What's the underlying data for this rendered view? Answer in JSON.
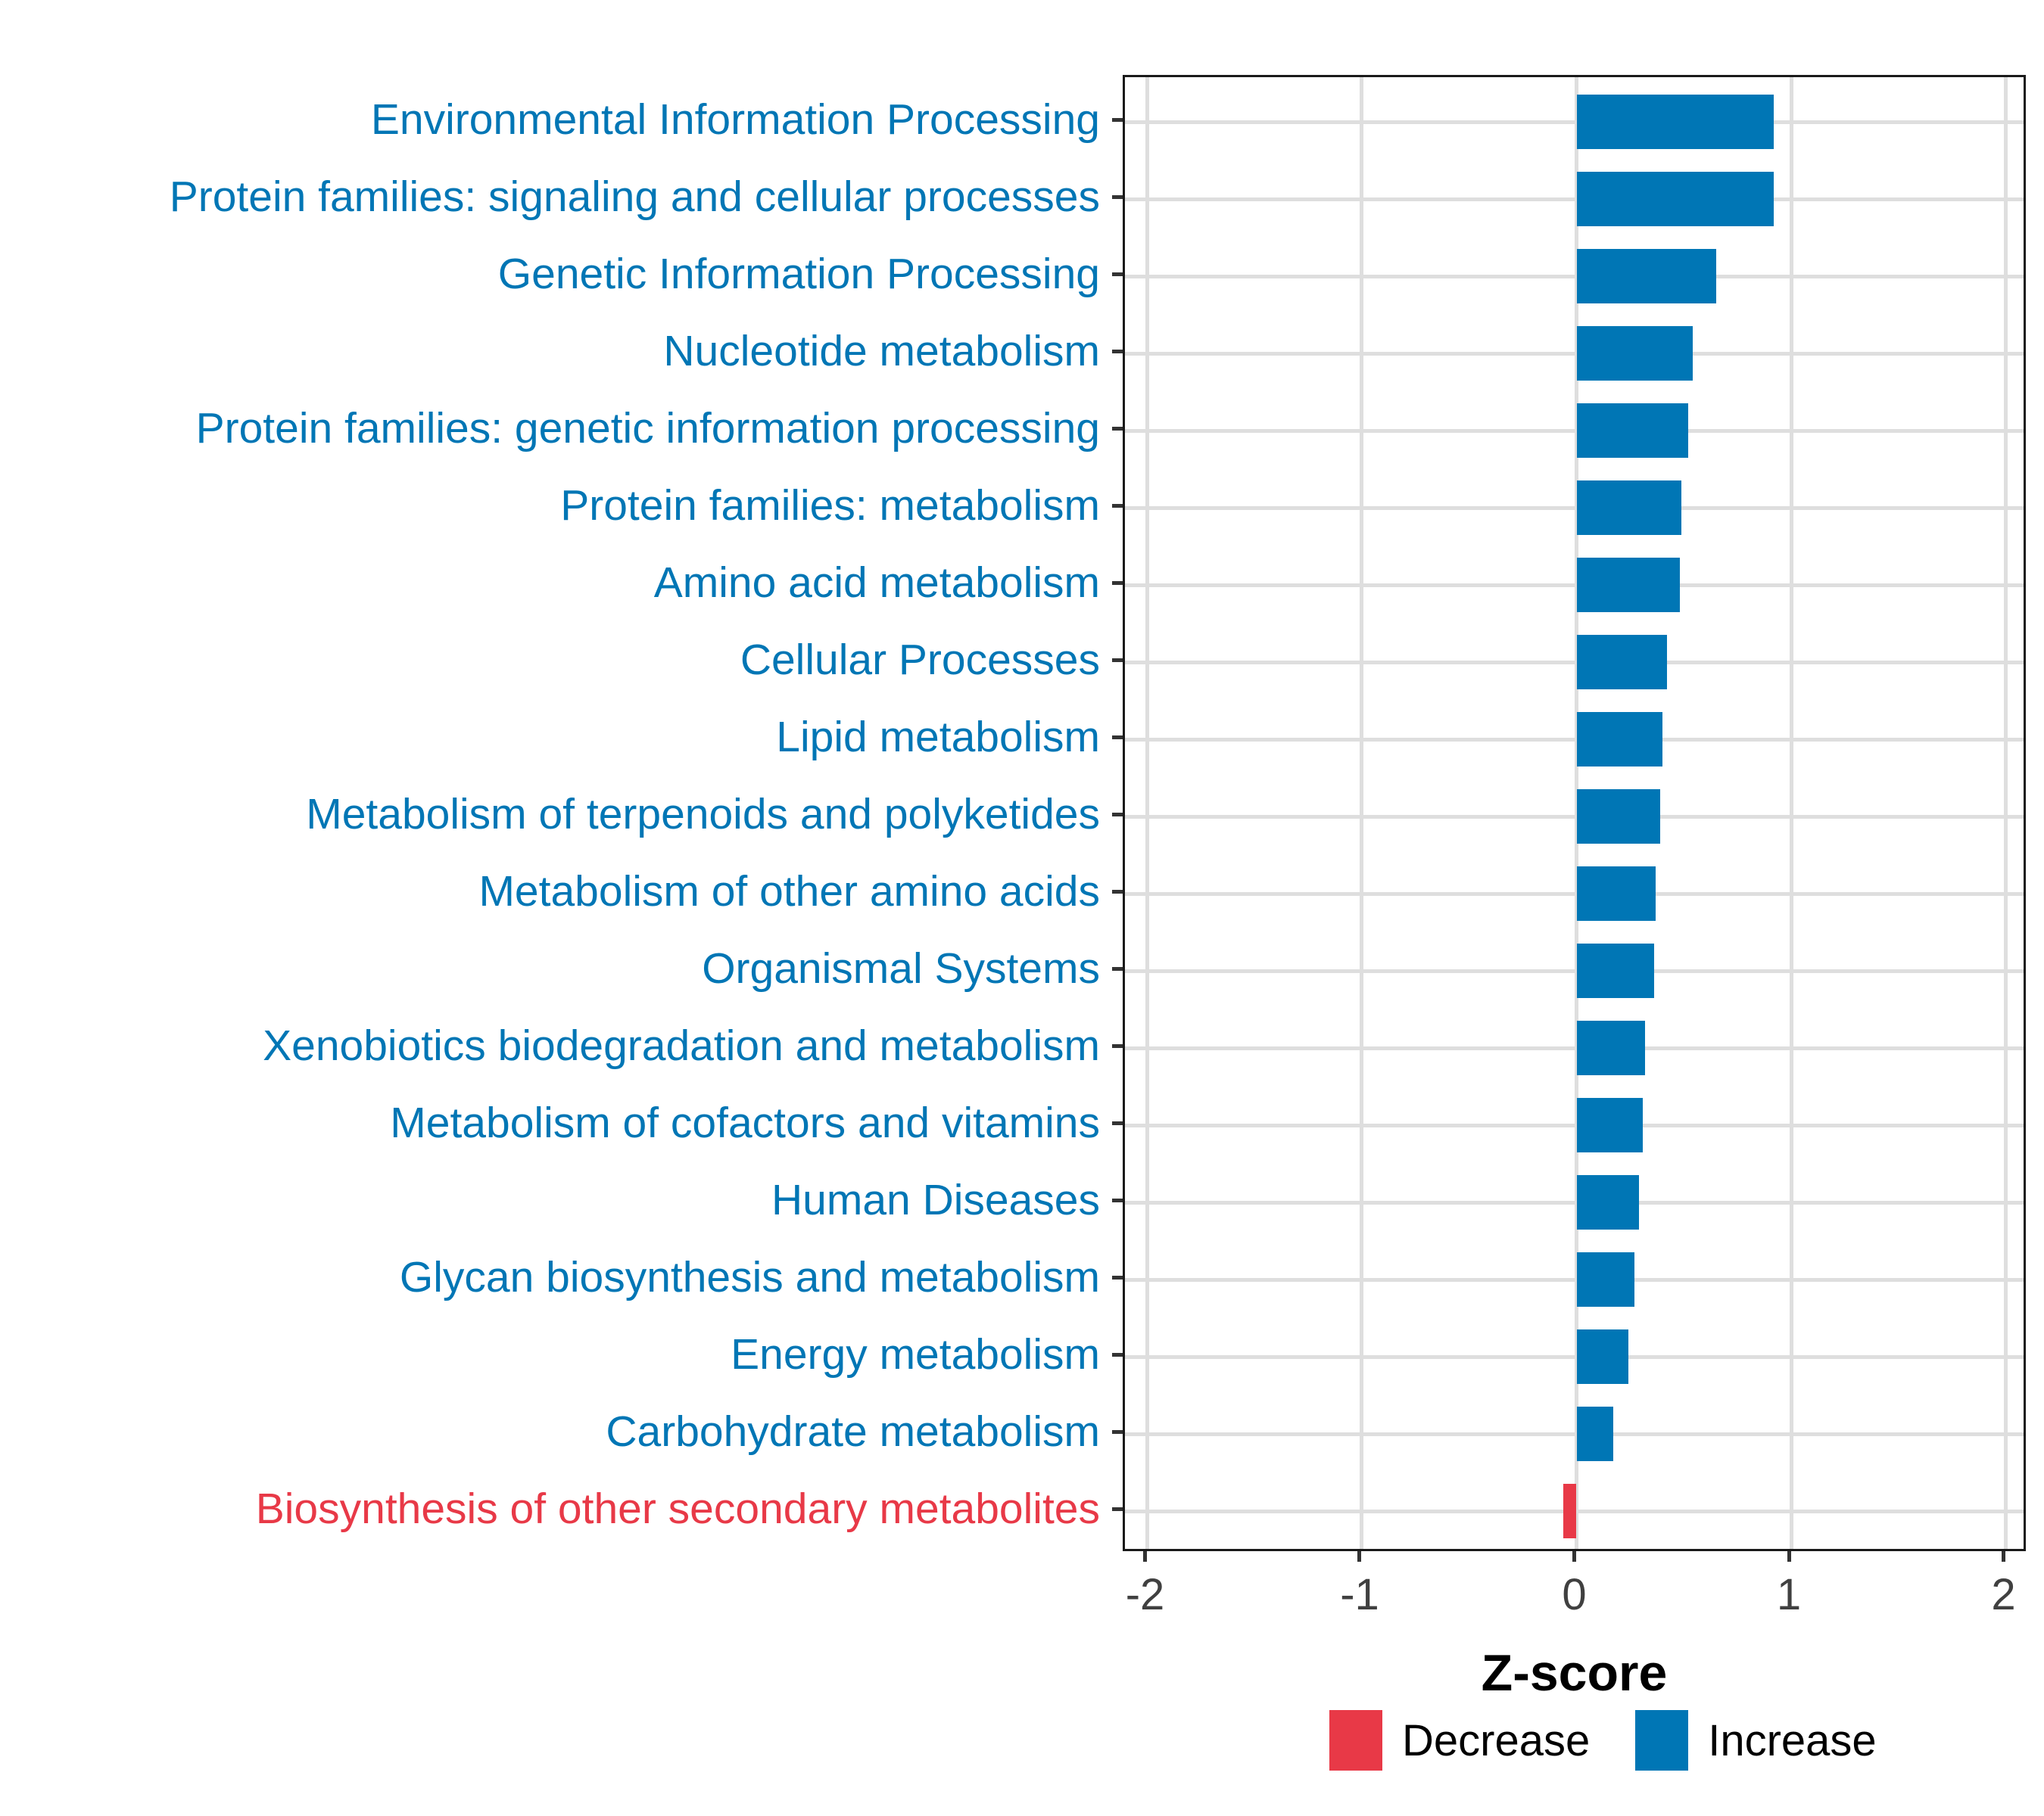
{
  "chart_data": {
    "type": "bar",
    "orientation": "horizontal",
    "title": "",
    "xlabel": "Z-score",
    "ylabel": "",
    "xlim": [
      -2.104,
      2.104
    ],
    "x_ticks": [
      -2,
      -1,
      0,
      1,
      2
    ],
    "grid": true,
    "legend_position": "bottom",
    "categories": [
      "Environmental Information Processing",
      "Protein families: signaling and cellular processes",
      "Genetic Information Processing",
      "Nucleotide metabolism",
      "Protein families: genetic information processing",
      "Protein families: metabolism",
      "Amino acid metabolism",
      "Cellular Processes",
      "Lipid metabolism",
      "Metabolism of terpenoids and polyketides",
      "Metabolism of other amino acids",
      "Organismal Systems",
      "Xenobiotics biodegradation and metabolism",
      "Metabolism of cofactors and vitamins",
      "Human Diseases",
      "Glycan biosynthesis and metabolism",
      "Energy metabolism",
      "Carbohydrate metabolism",
      "Biosynthesis of other secondary metabolites"
    ],
    "values": [
      0.92,
      0.92,
      0.65,
      0.54,
      0.52,
      0.49,
      0.48,
      0.42,
      0.4,
      0.39,
      0.37,
      0.36,
      0.32,
      0.31,
      0.29,
      0.27,
      0.24,
      0.17,
      -0.06
    ],
    "directions": [
      "Increase",
      "Increase",
      "Increase",
      "Increase",
      "Increase",
      "Increase",
      "Increase",
      "Increase",
      "Increase",
      "Increase",
      "Increase",
      "Increase",
      "Increase",
      "Increase",
      "Increase",
      "Increase",
      "Increase",
      "Increase",
      "Decrease"
    ],
    "colors": {
      "increase": "#0076B5",
      "decrease": "#E83947",
      "gridline": "#DEDEDE",
      "panel_border": "#1A1A1A",
      "tick_text": "#404040"
    },
    "legend": [
      {
        "label": "Decrease",
        "color": "#E83947"
      },
      {
        "label": "Increase",
        "color": "#0076B5"
      }
    ]
  }
}
